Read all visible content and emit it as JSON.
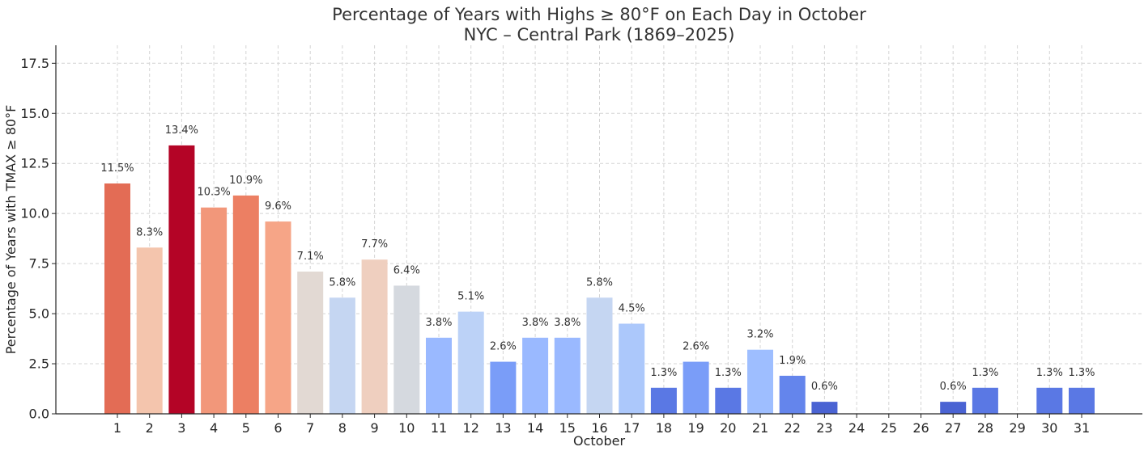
{
  "chart_data": {
    "type": "bar",
    "title": "Percentage of Years with Highs ≥ 80°F on Each Day in October",
    "subtitle": "NYC – Central Park (1869–2025)",
    "xlabel": "October",
    "ylabel": "Percentage of Years with TMAX ≥ 80°F",
    "ylim": [
      0,
      18.4
    ],
    "yticks": [
      "0.0",
      "2.5",
      "5.0",
      "7.5",
      "10.0",
      "12.5",
      "15.0",
      "17.5"
    ],
    "grid": true,
    "categories": [
      "1",
      "2",
      "3",
      "4",
      "5",
      "6",
      "7",
      "8",
      "9",
      "10",
      "11",
      "12",
      "13",
      "14",
      "15",
      "16",
      "17",
      "18",
      "19",
      "20",
      "21",
      "22",
      "23",
      "24",
      "25",
      "26",
      "27",
      "28",
      "29",
      "30",
      "31"
    ],
    "values": [
      11.5,
      8.3,
      13.4,
      10.3,
      10.9,
      9.6,
      7.1,
      5.8,
      7.7,
      6.4,
      3.8,
      5.1,
      2.6,
      3.8,
      3.8,
      5.8,
      4.5,
      1.3,
      2.6,
      1.3,
      3.2,
      1.9,
      0.6,
      0,
      0,
      0,
      0.6,
      1.3,
      0,
      1.3,
      1.3
    ],
    "data_labels": [
      "11.5%",
      "8.3%",
      "13.4%",
      "10.3%",
      "10.9%",
      "9.6%",
      "7.1%",
      "5.8%",
      "7.7%",
      "6.4%",
      "3.8%",
      "5.1%",
      "2.6%",
      "3.8%",
      "3.8%",
      "5.8%",
      "4.5%",
      "1.3%",
      "2.6%",
      "1.3%",
      "3.2%",
      "1.9%",
      "0.6%",
      "",
      "",
      "",
      "0.6%",
      "1.3%",
      "",
      "1.3%",
      "1.3%"
    ],
    "colors": [
      "#e36c55",
      "#f4c5ad",
      "#b40426",
      "#f2977a",
      "#ec7f63",
      "#f6a587",
      "#e2d9d3",
      "#c5d6f2",
      "#efcfbf",
      "#d5d9df",
      "#9ab9ff",
      "#bcd2f7",
      "#7a9df8",
      "#9ab9ff",
      "#9ab9ff",
      "#c5d6f2",
      "#acc8fb",
      "#5a78e4",
      "#7a9df8",
      "#5a78e4",
      "#9ebeff",
      "#6485ec",
      "#4a63d3",
      "#3b4cc0",
      "#3b4cc0",
      "#3b4cc0",
      "#4a63d3",
      "#5a78e4",
      "#3b4cc0",
      "#5a78e4",
      "#5a78e4"
    ]
  }
}
